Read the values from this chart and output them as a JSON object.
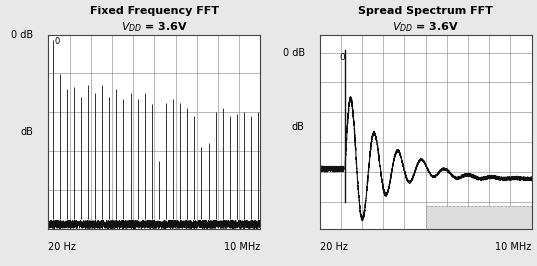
{
  "fig_width": 5.37,
  "fig_height": 2.66,
  "dpi": 100,
  "bg_color": "#e8e8e8",
  "plot_bg_color": "#ffffff",
  "left_title": "Fixed Frequency FFT",
  "left_subtitle": "$V_{DD}$ = 3.6V",
  "right_title": "Spread Spectrum FFT",
  "right_subtitle": "$V_{DD}$ = 3.6V",
  "xlabel_left_left": "20 Hz",
  "xlabel_left_right": "10 MHz",
  "xlabel_right_left": "20 Hz",
  "xlabel_right_right": "10 MHz",
  "ylabel_top": "0 dB",
  "ylabel_mid": "dB",
  "grid_color": "#999999",
  "line_color": "#111111",
  "title_fontsize": 8,
  "label_fontsize": 7
}
